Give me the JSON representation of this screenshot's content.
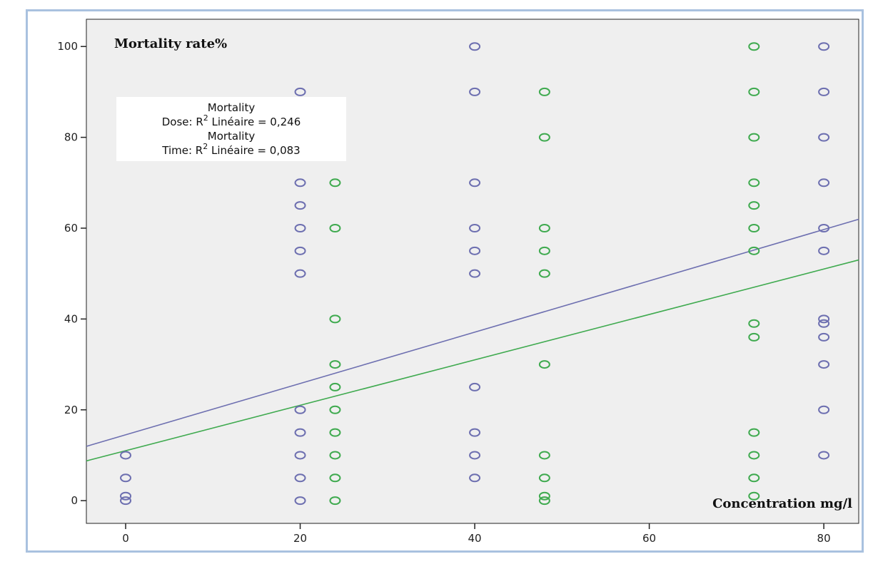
{
  "chart_data": {
    "type": "scatter",
    "title": "",
    "ylabel": "Mortality rate%",
    "xlabel": "Concentration mg/l",
    "xlim": [
      -4.5,
      84
    ],
    "ylim": [
      -5,
      106
    ],
    "xticks": [
      "0",
      "20",
      "40",
      "60",
      "80"
    ],
    "yticks": [
      "0",
      "20",
      "40",
      "60",
      "80",
      "100"
    ],
    "grid": false,
    "colors": {
      "dose": "#6d6fb0",
      "time": "#3faa4f",
      "plot_bg": "#efefef"
    },
    "legend": {
      "placement": "top-left",
      "line1": "Mortality",
      "line2_prefix": "Dose: R",
      "line2_sup": "2",
      "line2_suffix": " Linéaire = 0,246",
      "line3": "Mortality",
      "line4_prefix": "Time: R",
      "line4_sup": "2",
      "line4_suffix": " Linéaire = 0,083"
    },
    "series": [
      {
        "key": "dose",
        "fit": {
          "intercept": 14.5,
          "slope": 0.565
        },
        "points": [
          [
            0,
            0
          ],
          [
            0,
            1
          ],
          [
            0,
            5
          ],
          [
            0,
            10
          ],
          [
            20,
            0
          ],
          [
            20,
            5
          ],
          [
            20,
            10
          ],
          [
            20,
            15
          ],
          [
            20,
            20
          ],
          [
            20,
            50
          ],
          [
            20,
            55
          ],
          [
            20,
            60
          ],
          [
            20,
            65
          ],
          [
            20,
            70
          ],
          [
            20,
            90
          ],
          [
            40,
            5
          ],
          [
            40,
            10
          ],
          [
            40,
            15
          ],
          [
            40,
            25
          ],
          [
            40,
            50
          ],
          [
            40,
            55
          ],
          [
            40,
            60
          ],
          [
            40,
            70
          ],
          [
            40,
            90
          ],
          [
            40,
            100
          ],
          [
            80,
            10
          ],
          [
            80,
            20
          ],
          [
            80,
            30
          ],
          [
            80,
            36
          ],
          [
            80,
            39
          ],
          [
            80,
            40
          ],
          [
            80,
            55
          ],
          [
            80,
            60
          ],
          [
            80,
            70
          ],
          [
            80,
            80
          ],
          [
            80,
            90
          ],
          [
            80,
            100
          ]
        ]
      },
      {
        "key": "time",
        "fit": {
          "intercept": 11.0,
          "slope": 0.5
        },
        "points": [
          [
            24,
            0
          ],
          [
            24,
            5
          ],
          [
            24,
            10
          ],
          [
            24,
            15
          ],
          [
            24,
            20
          ],
          [
            24,
            25
          ],
          [
            24,
            30
          ],
          [
            24,
            40
          ],
          [
            24,
            60
          ],
          [
            24,
            70
          ],
          [
            48,
            0
          ],
          [
            48,
            1
          ],
          [
            48,
            5
          ],
          [
            48,
            10
          ],
          [
            48,
            30
          ],
          [
            48,
            50
          ],
          [
            48,
            55
          ],
          [
            48,
            60
          ],
          [
            48,
            80
          ],
          [
            48,
            90
          ],
          [
            72,
            1
          ],
          [
            72,
            5
          ],
          [
            72,
            10
          ],
          [
            72,
            15
          ],
          [
            72,
            36
          ],
          [
            72,
            39
          ],
          [
            72,
            55
          ],
          [
            72,
            60
          ],
          [
            72,
            65
          ],
          [
            72,
            70
          ],
          [
            72,
            80
          ],
          [
            72,
            90
          ],
          [
            72,
            100
          ]
        ]
      }
    ]
  }
}
